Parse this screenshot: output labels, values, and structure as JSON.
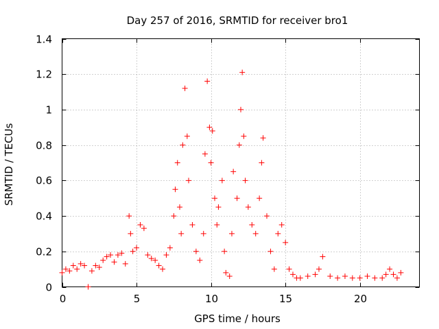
{
  "chart_data": {
    "type": "scatter",
    "title": "Day 257 of 2016, SRMTID for receiver bro1",
    "xlabel": "GPS time / hours",
    "ylabel": "SRMTID / TECUs",
    "xlim": [
      0,
      24
    ],
    "ylim": [
      0,
      1.4
    ],
    "xticks": [
      0,
      5,
      10,
      15,
      20
    ],
    "yticks": [
      0,
      0.2,
      0.4,
      0.6,
      0.8,
      1,
      1.2,
      1.4
    ],
    "xtick_labels": [
      "0",
      "5",
      "10",
      "15",
      "20"
    ],
    "ytick_labels": [
      "0",
      "0.2",
      "0.4",
      "0.6",
      "0.8",
      "1",
      "1.2",
      "1.4"
    ],
    "grid": true,
    "series": [
      {
        "name": "SRMTID",
        "marker": "+",
        "color": "#ff0000",
        "x": [
          0.0,
          0.25,
          0.5,
          0.75,
          1.0,
          1.25,
          1.5,
          1.75,
          2.0,
          2.25,
          2.5,
          2.75,
          3.0,
          3.25,
          3.5,
          3.75,
          4.0,
          4.25,
          4.5,
          4.6,
          4.75,
          5.0,
          5.25,
          5.5,
          5.75,
          6.0,
          6.25,
          6.5,
          6.75,
          7.0,
          7.25,
          7.5,
          7.6,
          7.75,
          7.9,
          8.0,
          8.1,
          8.25,
          8.4,
          8.5,
          8.75,
          9.0,
          9.25,
          9.5,
          9.6,
          9.75,
          9.9,
          10.0,
          10.1,
          10.25,
          10.4,
          10.5,
          10.75,
          10.9,
          11.0,
          11.25,
          11.4,
          11.5,
          11.75,
          11.9,
          12.0,
          12.1,
          12.2,
          12.3,
          12.5,
          12.75,
          13.0,
          13.25,
          13.4,
          13.5,
          13.75,
          14.0,
          14.25,
          14.5,
          14.75,
          15.0,
          15.25,
          15.5,
          15.75,
          16.0,
          16.5,
          17.0,
          17.25,
          17.5,
          18.0,
          18.5,
          19.0,
          19.5,
          20.0,
          20.5,
          21.0,
          21.5,
          21.75,
          22.0,
          22.25,
          22.5,
          22.75
        ],
        "y": [
          0.08,
          0.1,
          0.09,
          0.12,
          0.1,
          0.13,
          0.12,
          0.0,
          0.09,
          0.12,
          0.11,
          0.15,
          0.17,
          0.18,
          0.14,
          0.18,
          0.19,
          0.13,
          0.4,
          0.3,
          0.2,
          0.22,
          0.35,
          0.33,
          0.18,
          0.16,
          0.15,
          0.12,
          0.1,
          0.18,
          0.22,
          0.4,
          0.55,
          0.7,
          0.45,
          0.3,
          0.8,
          1.12,
          0.85,
          0.6,
          0.35,
          0.2,
          0.15,
          0.3,
          0.75,
          1.16,
          0.9,
          0.7,
          0.88,
          0.5,
          0.35,
          0.45,
          0.6,
          0.2,
          0.08,
          0.06,
          0.3,
          0.65,
          0.5,
          0.8,
          1.0,
          1.21,
          0.85,
          0.6,
          0.45,
          0.35,
          0.3,
          0.5,
          0.7,
          0.84,
          0.4,
          0.2,
          0.1,
          0.3,
          0.35,
          0.25,
          0.1,
          0.07,
          0.05,
          0.05,
          0.06,
          0.07,
          0.1,
          0.17,
          0.06,
          0.05,
          0.06,
          0.05,
          0.05,
          0.06,
          0.05,
          0.05,
          0.07,
          0.1,
          0.07,
          0.05,
          0.08
        ]
      }
    ]
  },
  "colors": {
    "marker": "#ff0000",
    "grid": "#a0a0a0",
    "axis": "#000000",
    "background": "#ffffff"
  }
}
